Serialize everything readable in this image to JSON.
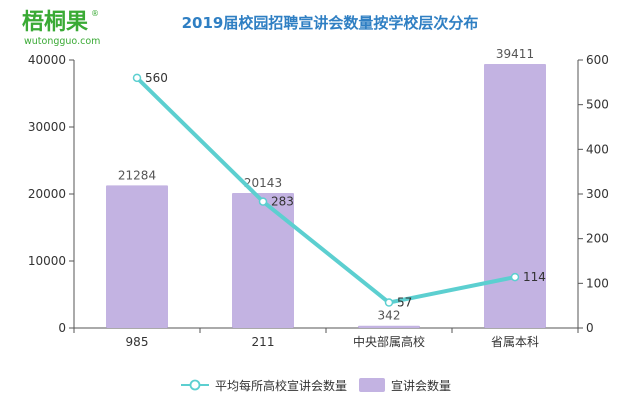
{
  "brand": {
    "logo_text": "梧桐果",
    "logo_registered": "®",
    "logo_url_text": "wutongguo.com",
    "logo_color": "#3aaa35"
  },
  "chart_data": {
    "type": "bar",
    "title": "2019届校园招聘宣讲会数量按学校层次分布",
    "categories": [
      "985",
      "211",
      "中央部属高校",
      "省属本科"
    ],
    "series": [
      {
        "name": "宣讲会数量",
        "type": "bar",
        "axis": "left",
        "values": [
          21284,
          20143,
          342,
          39411
        ],
        "color": "#c3b3e2"
      },
      {
        "name": "平均每所高校宣讲会数量",
        "type": "line",
        "axis": "right",
        "values": [
          560,
          283,
          57,
          114
        ],
        "color": "#5ccfd0"
      }
    ],
    "y_left": {
      "min": 0,
      "max": 40000,
      "ticks": [
        0,
        10000,
        20000,
        30000,
        40000
      ]
    },
    "y_right": {
      "min": 0,
      "max": 600,
      "ticks": [
        0,
        100,
        200,
        300,
        400,
        500,
        600
      ]
    },
    "legend": {
      "position": "bottom",
      "items": [
        "平均每所高校宣讲会数量",
        "宣讲会数量"
      ]
    },
    "grid": false,
    "title_color": "#2f7fc3"
  }
}
